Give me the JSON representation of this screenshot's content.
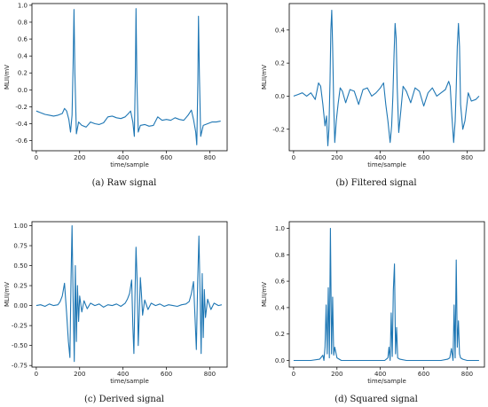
{
  "figure": {
    "captions": [
      "(a)  Raw signal",
      "(b)  Filtered signal",
      "(c)  Derived signal",
      "(d)  Squared signal"
    ]
  },
  "colors": {
    "line": "#1f77b4",
    "axes": "#000000"
  },
  "chart_data": [
    {
      "type": "line",
      "title": "",
      "caption": "(a)  Raw signal",
      "xlabel": "time/sample",
      "ylabel": "MLII/mV",
      "xlim": [
        -20,
        880
      ],
      "ylim": [
        -0.72,
        1.02
      ],
      "xticks": [
        0,
        200,
        400,
        600,
        800
      ],
      "yticks": [
        -0.6,
        -0.4,
        -0.2,
        0.0,
        0.2,
        0.4,
        0.6,
        0.8,
        1.0
      ],
      "ytick_labels": [
        "-0.6",
        "-0.4",
        "-0.2",
        "0.0",
        "0.2",
        "0.4",
        "0.6",
        "0.8",
        "1.0"
      ],
      "grid": false,
      "series": [
        {
          "x": [
            0,
            20,
            40,
            60,
            80,
            100,
            120,
            130,
            140,
            150,
            158,
            165,
            170,
            174,
            178,
            185,
            195,
            210,
            230,
            250,
            270,
            290,
            310,
            330,
            350,
            370,
            390,
            410,
            425,
            435,
            445,
            452,
            457,
            460,
            464,
            470,
            480,
            500,
            520,
            540,
            560,
            580,
            600,
            620,
            640,
            660,
            680,
            700,
            715,
            725,
            735,
            740,
            745,
            748,
            752,
            758,
            770,
            790,
            810,
            830,
            850
          ],
          "y": [
            -0.25,
            -0.27,
            -0.29,
            -0.3,
            -0.31,
            -0.3,
            -0.28,
            -0.22,
            -0.25,
            -0.35,
            -0.5,
            -0.3,
            0.3,
            0.95,
            0.2,
            -0.52,
            -0.38,
            -0.42,
            -0.44,
            -0.38,
            -0.4,
            -0.41,
            -0.39,
            -0.32,
            -0.31,
            -0.33,
            -0.34,
            -0.32,
            -0.28,
            -0.25,
            -0.38,
            -0.55,
            0.2,
            0.96,
            0.1,
            -0.5,
            -0.42,
            -0.41,
            -0.43,
            -0.42,
            -0.32,
            -0.36,
            -0.35,
            -0.36,
            -0.33,
            -0.35,
            -0.36,
            -0.3,
            -0.24,
            -0.35,
            -0.5,
            -0.65,
            0.1,
            0.87,
            0.2,
            -0.55,
            -0.42,
            -0.4,
            -0.38,
            -0.38,
            -0.37
          ]
        }
      ]
    },
    {
      "type": "line",
      "title": "",
      "caption": "(b)  Filtered signal",
      "xlabel": "time/sample",
      "ylabel": "MLII/mV",
      "xlim": [
        -20,
        880
      ],
      "ylim": [
        -0.33,
        0.56
      ],
      "xticks": [
        0,
        200,
        400,
        600,
        800
      ],
      "yticks": [
        -0.2,
        0.0,
        0.2,
        0.4
      ],
      "ytick_labels": [
        "-0.2",
        "0.0",
        "0.2",
        "0.4"
      ],
      "grid": false,
      "series": [
        {
          "x": [
            0,
            20,
            40,
            60,
            80,
            100,
            115,
            125,
            135,
            145,
            152,
            158,
            163,
            168,
            172,
            176,
            180,
            185,
            190,
            197,
            205,
            215,
            225,
            240,
            260,
            280,
            300,
            320,
            340,
            360,
            380,
            400,
            415,
            425,
            435,
            445,
            452,
            458,
            463,
            468,
            473,
            478,
            485,
            495,
            505,
            520,
            540,
            560,
            580,
            600,
            620,
            640,
            660,
            680,
            700,
            715,
            722,
            730,
            738,
            745,
            750,
            755,
            760,
            765,
            770,
            780,
            790,
            805,
            820,
            840,
            855
          ],
          "y": [
            0.0,
            0.01,
            0.02,
            0.0,
            0.02,
            -0.02,
            0.08,
            0.06,
            -0.05,
            -0.18,
            -0.12,
            -0.3,
            -0.2,
            0.1,
            0.4,
            0.52,
            0.3,
            -0.05,
            -0.28,
            -0.15,
            -0.05,
            0.05,
            0.03,
            -0.04,
            0.04,
            0.03,
            -0.05,
            0.04,
            0.05,
            0.0,
            0.02,
            0.05,
            0.08,
            -0.05,
            -0.15,
            -0.28,
            -0.18,
            0.0,
            0.25,
            0.44,
            0.35,
            0.05,
            -0.22,
            -0.08,
            0.06,
            0.03,
            -0.04,
            0.05,
            0.03,
            -0.06,
            0.02,
            0.05,
            0.0,
            0.02,
            0.04,
            0.09,
            0.06,
            -0.12,
            -0.28,
            -0.15,
            0.05,
            0.3,
            0.44,
            0.3,
            -0.05,
            -0.2,
            -0.15,
            0.02,
            -0.03,
            -0.02,
            0.0
          ]
        }
      ]
    },
    {
      "type": "line",
      "title": "",
      "caption": "(c)  Derived signal",
      "xlabel": "time/sample",
      "ylabel": "MLII/mV",
      "xlim": [
        -20,
        880
      ],
      "ylim": [
        -0.77,
        1.05
      ],
      "xticks": [
        0,
        200,
        400,
        600,
        800
      ],
      "yticks": [
        -0.75,
        -0.5,
        -0.25,
        0.0,
        0.25,
        0.5,
        0.75,
        1.0
      ],
      "ytick_labels": [
        "-0.75",
        "-0.50",
        "-0.25",
        "0.00",
        "0.25",
        "0.50",
        "0.75",
        "1.00"
      ],
      "grid": false,
      "series": [
        {
          "x": [
            0,
            20,
            40,
            60,
            80,
            100,
            110,
            120,
            130,
            140,
            148,
            155,
            160,
            165,
            170,
            175,
            180,
            185,
            190,
            195,
            200,
            210,
            220,
            235,
            250,
            270,
            290,
            310,
            330,
            350,
            370,
            390,
            410,
            420,
            430,
            440,
            445,
            450,
            455,
            460,
            465,
            470,
            475,
            480,
            485,
            490,
            500,
            515,
            530,
            550,
            570,
            590,
            610,
            630,
            650,
            670,
            690,
            705,
            715,
            725,
            732,
            738,
            744,
            750,
            755,
            760,
            765,
            770,
            775,
            780,
            790,
            805,
            820,
            840,
            855
          ],
          "y": [
            0.0,
            0.01,
            -0.01,
            0.02,
            0.0,
            0.01,
            0.05,
            0.12,
            0.28,
            -0.1,
            -0.45,
            -0.65,
            0.3,
            1.0,
            0.1,
            -0.7,
            0.5,
            -0.45,
            0.25,
            -0.2,
            0.12,
            -0.08,
            0.06,
            -0.04,
            0.03,
            0.0,
            0.02,
            -0.02,
            0.01,
            0.0,
            0.02,
            -0.01,
            0.03,
            0.08,
            0.15,
            0.32,
            -0.25,
            -0.6,
            0.1,
            0.73,
            0.3,
            -0.5,
            -0.1,
            0.35,
            0.15,
            -0.12,
            0.07,
            -0.05,
            0.03,
            0.0,
            0.02,
            -0.01,
            0.01,
            0.0,
            -0.01,
            0.01,
            0.02,
            0.05,
            0.15,
            0.3,
            -0.15,
            -0.55,
            0.3,
            0.87,
            0.2,
            -0.6,
            0.4,
            -0.4,
            0.2,
            -0.15,
            0.08,
            -0.05,
            0.03,
            0.0,
            0.01
          ]
        }
      ]
    },
    {
      "type": "line",
      "title": "",
      "caption": "(d)  Squared signal",
      "xlabel": "time/sample",
      "ylabel": "MLII/mV",
      "xlim": [
        -20,
        880
      ],
      "ylim": [
        -0.05,
        1.05
      ],
      "xticks": [
        0,
        200,
        400,
        600,
        800
      ],
      "yticks": [
        0.0,
        0.2,
        0.4,
        0.6,
        0.8,
        1.0
      ],
      "ytick_labels": [
        "0.0",
        "0.2",
        "0.4",
        "0.6",
        "0.8",
        "1.0"
      ],
      "grid": false,
      "series": [
        {
          "x": [
            0,
            40,
            80,
            120,
            135,
            140,
            145,
            150,
            155,
            160,
            165,
            170,
            175,
            180,
            185,
            190,
            200,
            220,
            260,
            300,
            340,
            380,
            420,
            435,
            440,
            445,
            450,
            455,
            460,
            465,
            470,
            475,
            480,
            490,
            520,
            560,
            600,
            640,
            680,
            710,
            720,
            728,
            735,
            740,
            745,
            750,
            755,
            760,
            765,
            770,
            780,
            800,
            830,
            855
          ],
          "y": [
            0.0,
            0.0,
            0.0,
            0.01,
            0.04,
            0.0,
            0.1,
            0.42,
            0.05,
            0.55,
            0.02,
            1.0,
            0.05,
            0.48,
            0.04,
            0.1,
            0.02,
            0.0,
            0.0,
            0.0,
            0.0,
            0.0,
            0.0,
            0.02,
            0.1,
            0.0,
            0.36,
            0.03,
            0.53,
            0.73,
            0.05,
            0.25,
            0.02,
            0.01,
            0.0,
            0.0,
            0.0,
            0.0,
            0.0,
            0.01,
            0.02,
            0.09,
            0.0,
            0.42,
            0.02,
            0.76,
            0.1,
            0.3,
            0.05,
            0.02,
            0.01,
            0.0,
            0.0,
            0.0
          ]
        }
      ]
    }
  ]
}
